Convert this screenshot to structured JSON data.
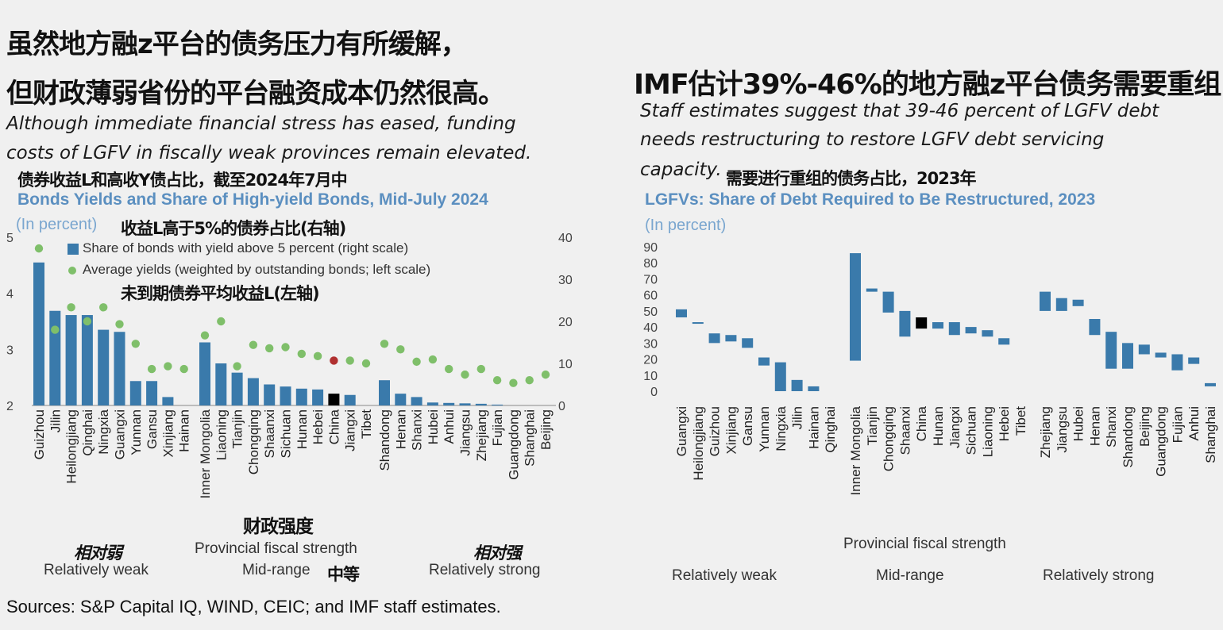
{
  "left": {
    "title_cn_line1": "虽然地方融z平台的债务压力有所缓解，",
    "title_cn_line2": "但财政薄弱省份的平台融资成本仍然很高。",
    "subtitle_en_line1": "Although immediate financial stress has eased, funding",
    "subtitle_en_line2": "costs of LGFV in fiscally weak provinces remain elevated.",
    "chart_title_cn": "债券收益L和高收Y债占比，截至2024年7月中",
    "chart_title_en": "Bonds Yields and Share of High-yield Bonds, Mid-July 2024",
    "unit": "(In percent)",
    "annot_share_cn": "收益L高于5%的债券占比(右轴)",
    "legend_share": "Share of bonds with yield above 5 percent (right scale)",
    "legend_yield": "Average yields (weighted by outstanding bonds; left scale)",
    "annot_yield_cn": "未到期债券平均收益L(左轴)",
    "axis_cn": "财政强度",
    "axis_en": "Provincial fiscal strength",
    "group_weak_cn": "相对弱",
    "group_weak_en": "Relatively weak",
    "group_mid_en": "Mid-range",
    "group_mid_cn": "中等",
    "group_strong_cn": "相对强",
    "group_strong_en": "Relatively strong",
    "sources": "Sources: S&P Capital IQ, WIND, CEIC; and IMF staff estimates."
  },
  "right": {
    "title_cn": "IMF估计39%-46%的地方融z平台债务需要重组",
    "subtitle_en_line1": "Staff estimates suggest that 39-46 percent of LGFV debt",
    "subtitle_en_line2": "needs restructuring to restore LGFV debt servicing",
    "subtitle_en_line3": "capacity.",
    "chart_title_cn": "需要进行重组的债务占比，2023年",
    "chart_title_en": "LGFVs: Share of Debt Required to Be Restructured, 2023",
    "unit": "(In percent)",
    "axis_en": "Provincial fiscal strength",
    "group_weak_en": "Relatively weak",
    "group_mid_en": "Mid-range",
    "group_strong_en": "Relatively strong"
  },
  "colors": {
    "bar": "#3a7aab",
    "dot": "#7fbf6a",
    "dot_china": "#b03030",
    "china_bar": "#000000",
    "title_blue": "#5b8fc0"
  },
  "chart_data": [
    {
      "type": "bar+scatter",
      "title": "Bonds Yields and Share of High-yield Bonds, Mid-July 2024",
      "left_axis": {
        "label": "Average yields (left scale)",
        "ylim": [
          2,
          5
        ],
        "ticks": [
          "2",
          "3",
          "4",
          "5"
        ]
      },
      "right_axis": {
        "label": "Share above 5 percent (right scale)",
        "ylim": [
          0,
          40
        ],
        "ticks": [
          "0",
          "10",
          "20",
          "30",
          "40"
        ]
      },
      "groups": [
        {
          "name": "Relatively weak",
          "categories": [
            "Guizhou",
            "Jilin",
            "Heilongjiang",
            "Qinghai",
            "Ningxia",
            "Guangxi",
            "Yunnan",
            "Gansu",
            "Xinjiang",
            "Hainan"
          ],
          "share": [
            34,
            22.5,
            21.5,
            21.5,
            18,
            17.5,
            5.8,
            5.8,
            2,
            0
          ],
          "yield": [
            4.8,
            3.35,
            3.75,
            3.5,
            3.75,
            3.45,
            3.1,
            2.65,
            2.7,
            2.65
          ]
        },
        {
          "name": "Mid-range",
          "categories": [
            "Inner Mongolia",
            "Liaoning",
            "Tianjin",
            "Chongqing",
            "Shaanxi",
            "Sichuan",
            "Hunan",
            "Hebei",
            "China",
            "Jiangxi",
            "Tibet"
          ],
          "share": [
            15,
            10,
            7.8,
            6.5,
            5,
            4.5,
            4,
            3.8,
            2.8,
            2.5,
            0
          ],
          "yield": [
            3.25,
            3.5,
            2.7,
            3.08,
            3.02,
            3.04,
            2.92,
            2.88,
            2.8,
            2.8,
            2.75
          ]
        },
        {
          "name": "Relatively strong",
          "categories": [
            "Shandong",
            "Henan",
            "Shanxi",
            "Hubei",
            "Anhui",
            "Jiangsu",
            "Zhejiang",
            "Fujian",
            "Guangdong",
            "Shanghai",
            "Beijing"
          ],
          "share": [
            6,
            2.8,
            2,
            0.7,
            0.6,
            0.5,
            0.4,
            0.2,
            0,
            0,
            0
          ],
          "yield": [
            3.1,
            3.0,
            2.78,
            2.82,
            2.65,
            2.55,
            2.65,
            2.45,
            2.4,
            2.45,
            2.55
          ]
        }
      ],
      "highlight": "China"
    },
    {
      "type": "floating-bar",
      "title": "LGFVs: Share of Debt Required to Be Restructured, 2023",
      "ylim": [
        0,
        90
      ],
      "ticks": [
        "0",
        "10",
        "20",
        "30",
        "40",
        "50",
        "60",
        "70",
        "80",
        "90"
      ],
      "groups": [
        {
          "name": "Relatively weak",
          "categories": [
            "Guangxi",
            "Heilongjiang",
            "Guizhou",
            "Xinjiang",
            "Gansu",
            "Yunnan",
            "Ningxia",
            "Jilin",
            "Hainan",
            "Qinghai"
          ],
          "ranges": [
            [
              46,
              51
            ],
            [
              42,
              43
            ],
            [
              30,
              36
            ],
            [
              31,
              35
            ],
            [
              27,
              33
            ],
            [
              16,
              21
            ],
            [
              0,
              18
            ],
            [
              0,
              7
            ],
            [
              0,
              3
            ],
            null
          ]
        },
        {
          "name": "Mid-range",
          "categories": [
            "Inner Mongolia",
            "Tianjin",
            "Chongqing",
            "Shaanxi",
            "China",
            "Hunan",
            "Jiangxi",
            "Sichuan",
            "Liaoning",
            "Hebei",
            "Tibet"
          ],
          "ranges": [
            [
              19,
              86
            ],
            [
              62,
              64
            ],
            [
              49,
              62
            ],
            [
              34,
              50
            ],
            [
              39,
              46
            ],
            [
              39,
              43
            ],
            [
              35,
              43
            ],
            [
              36,
              40
            ],
            [
              34,
              38
            ],
            [
              29,
              33
            ],
            null
          ]
        },
        {
          "name": "Relatively strong",
          "categories": [
            "Zhejiang",
            "Jiangsu",
            "Hubei",
            "Henan",
            "Shanxi",
            "Shandong",
            "Beijing",
            "Guangdong",
            "Fujian",
            "Anhui",
            "Shanghai"
          ],
          "ranges": [
            [
              50,
              62
            ],
            [
              50,
              58
            ],
            [
              53,
              57
            ],
            [
              35,
              45
            ],
            [
              14,
              37
            ],
            [
              14,
              30
            ],
            [
              23,
              29
            ],
            [
              21,
              24
            ],
            [
              13,
              23
            ],
            [
              17,
              21
            ],
            [
              3,
              5
            ]
          ]
        }
      ],
      "highlight": "China"
    }
  ]
}
